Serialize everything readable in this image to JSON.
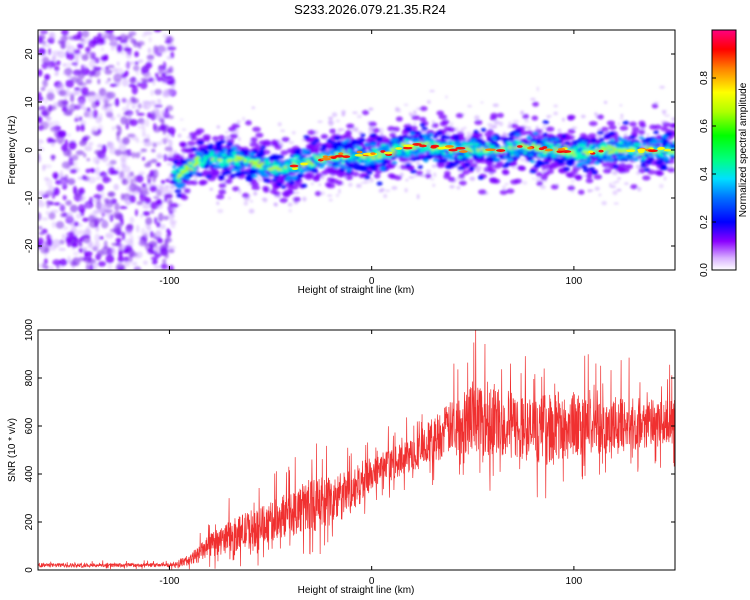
{
  "page_title": "S233.2026.079.21.35.R24",
  "colors": {
    "snr_line": "#f03030",
    "spectrogram_noise": "#8a3cf0",
    "colormap": [
      "#ffffff",
      "#c8a0ff",
      "#7a00ff",
      "#0000ff",
      "#00a0ff",
      "#00ffc0",
      "#00ff00",
      "#c0ff00",
      "#ffff00",
      "#ff8000",
      "#ff0000",
      "#ff00a0"
    ]
  },
  "chart_data": [
    {
      "type": "heatmap",
      "title": "S233.2026.079.21.35.R24",
      "xlabel": "Height of straight line (km)",
      "ylabel": "Frequency (Hz)",
      "xlim": [
        -165,
        150
      ],
      "ylim": [
        -25,
        25
      ],
      "x_ticks": [
        -100,
        0,
        100
      ],
      "y_ticks": [
        -20,
        -10,
        0,
        10,
        20
      ],
      "colorbar": {
        "label": "Normalized spectral amplitude",
        "range": [
          0,
          1
        ],
        "ticks": [
          "0.0",
          "0.2",
          "0.4",
          "0.6",
          "0.8"
        ]
      },
      "ridge": {
        "x": [
          -95,
          -85,
          -75,
          -65,
          -55,
          -45,
          -35,
          -25,
          -15,
          -5,
          5,
          15,
          25,
          35,
          45,
          55,
          65,
          75,
          85,
          95,
          105,
          115,
          125,
          135,
          145
        ],
        "frequency": [
          -5,
          -2,
          -2,
          -2,
          -3,
          -4,
          -3,
          -2,
          -1,
          -1,
          -1,
          0.5,
          1,
          0.5,
          0,
          0,
          0,
          1,
          0,
          0,
          -1,
          0,
          0,
          0,
          0
        ]
      }
    },
    {
      "type": "line",
      "xlabel": "Height of straight line (km)",
      "ylabel": "SNR (10 * v/v)",
      "xlim": [
        -165,
        150
      ],
      "ylim": [
        0,
        1000
      ],
      "x_ticks": [
        -100,
        0,
        100
      ],
      "y_ticks": [
        0,
        200,
        400,
        600,
        800,
        1000
      ],
      "series": [
        {
          "name": "SNR",
          "x": [
            -165,
            -140,
            -120,
            -100,
            -90,
            -80,
            -70,
            -60,
            -50,
            -40,
            -30,
            -20,
            -10,
            0,
            10,
            20,
            30,
            40,
            50,
            60,
            70,
            80,
            90,
            100,
            110,
            120,
            130,
            140,
            150
          ],
          "y": [
            20,
            20,
            20,
            20,
            40,
            100,
            140,
            170,
            200,
            240,
            270,
            280,
            330,
            400,
            440,
            480,
            540,
            600,
            640,
            630,
            600,
            580,
            590,
            600,
            600,
            600,
            610,
            610,
            610
          ],
          "band": [
            15,
            15,
            15,
            15,
            40,
            90,
            120,
            150,
            150,
            180,
            200,
            200,
            170,
            140,
            120,
            130,
            180,
            200,
            300,
            280,
            250,
            250,
            280,
            250,
            220,
            200,
            200,
            180,
            180
          ]
        }
      ]
    }
  ]
}
